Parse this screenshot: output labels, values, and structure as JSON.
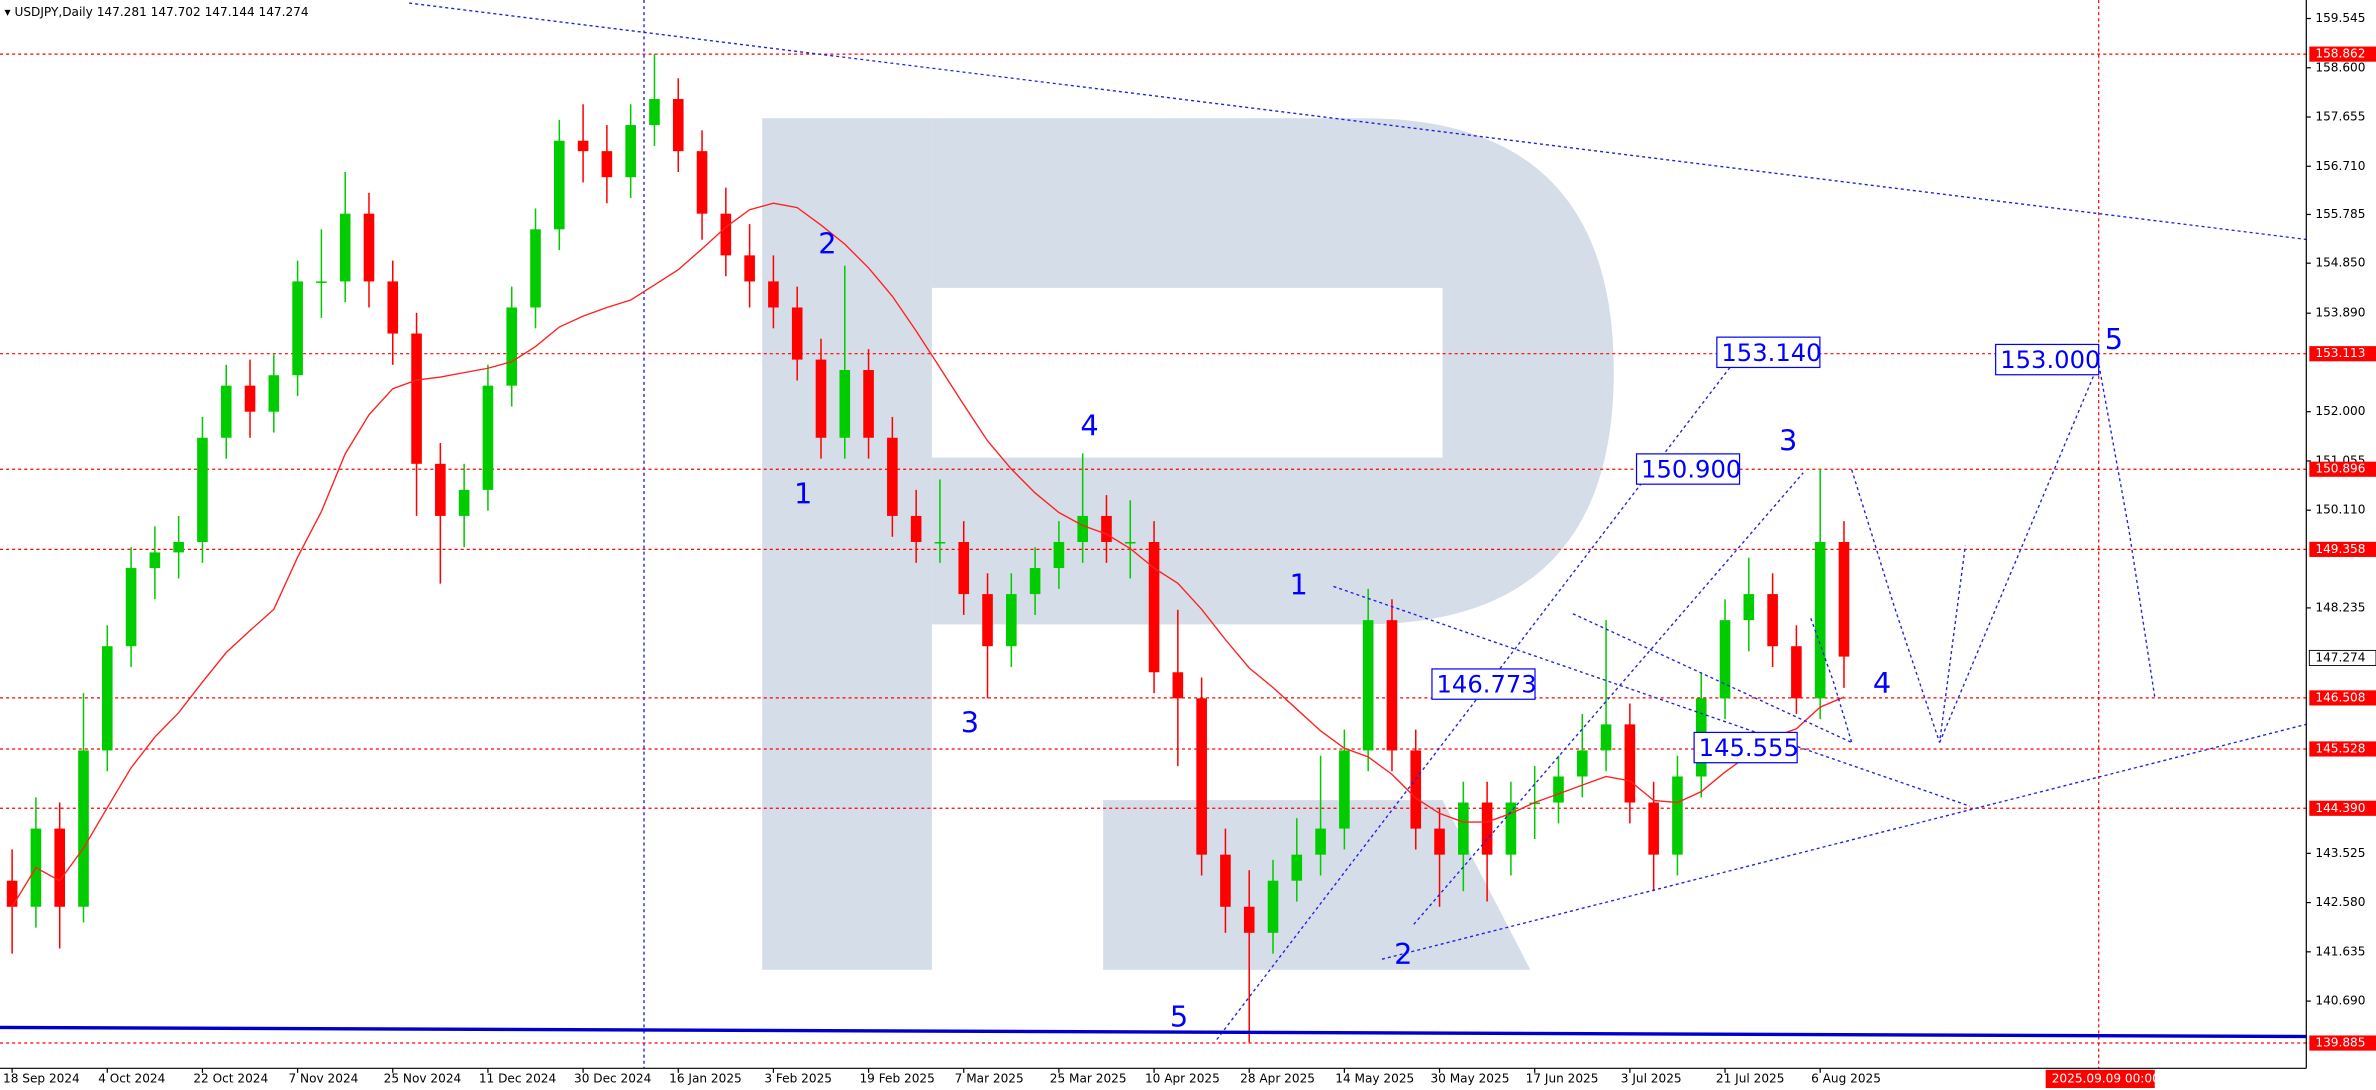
{
  "chart_data": {
    "type": "candlestick",
    "symbol": "USDJPY,Daily",
    "ohlc": [
      147.281,
      147.702,
      147.144,
      147.274
    ],
    "up_color": "#00cc00",
    "down_color": "#ff0000",
    "ma_color": "#ff2020",
    "ylim": [
      139.4,
      159.9
    ],
    "yticks": [
      159.545,
      {
        "value": 158.6,
        "label": "158.600"
      },
      157.655,
      {
        "value": 156.71,
        "label": "156.710"
      },
      155.785,
      {
        "value": 154.85,
        "label": "154.850"
      },
      {
        "value": 153.89,
        "label": "153.890"
      },
      {
        "value": 152.0,
        "label": "152.000"
      },
      151.055,
      {
        "value": 150.11,
        "label": "150.110"
      },
      148.235,
      143.525,
      {
        "value": 142.58,
        "label": "142.580"
      },
      141.635,
      {
        "value": 140.69,
        "label": "140.690"
      }
    ],
    "categories": [
      "18 Sep 2024",
      null,
      null,
      null,
      "4 Oct 2024",
      null,
      null,
      null,
      "22 Oct 2024",
      null,
      null,
      null,
      "7 Nov 2024",
      null,
      null,
      null,
      "25 Nov 2024",
      null,
      null,
      null,
      "11 Dec 2024",
      null,
      null,
      null,
      "30 Dec 2024",
      null,
      null,
      null,
      "16 Jan 2025",
      null,
      null,
      null,
      "3 Feb 2025",
      null,
      null,
      null,
      "19 Feb 2025",
      null,
      null,
      null,
      "7 Mar 2025",
      null,
      null,
      null,
      "25 Mar 2025",
      null,
      null,
      null,
      "10 Apr 2025",
      null,
      null,
      null,
      "28 Apr 2025",
      null,
      null,
      null,
      "14 May 2025",
      null,
      null,
      null,
      "30 May 2025",
      null,
      null,
      null,
      "17 Jun 2025",
      null,
      null,
      null,
      "3 Jul 2025",
      null,
      null,
      null,
      "21 Jul 2025",
      null,
      null,
      null,
      "6 Aug 2025",
      null
    ],
    "candles": [
      [
        143.0,
        143.6,
        141.6,
        142.5
      ],
      [
        142.5,
        144.6,
        142.1,
        144.0
      ],
      [
        144.0,
        144.5,
        141.7,
        142.5
      ],
      [
        142.5,
        146.6,
        142.2,
        145.5
      ],
      [
        145.5,
        147.9,
        145.1,
        147.5
      ],
      [
        147.5,
        149.4,
        147.1,
        149.0
      ],
      [
        149.0,
        149.8,
        148.4,
        149.3
      ],
      [
        149.3,
        150.0,
        148.8,
        149.5
      ],
      [
        149.5,
        151.9,
        149.1,
        151.5
      ],
      [
        151.5,
        152.9,
        151.1,
        152.5
      ],
      [
        152.5,
        153.0,
        151.5,
        152.0
      ],
      [
        152.0,
        153.1,
        151.6,
        152.7
      ],
      [
        152.7,
        154.9,
        152.3,
        154.5
      ],
      [
        154.5,
        155.5,
        153.8,
        154.5
      ],
      [
        154.5,
        156.6,
        154.1,
        155.8
      ],
      [
        155.8,
        156.2,
        154.0,
        154.5
      ],
      [
        154.5,
        154.9,
        152.9,
        153.5
      ],
      [
        153.5,
        153.9,
        150.0,
        151.0
      ],
      [
        151.0,
        151.4,
        148.7,
        150.0
      ],
      [
        150.0,
        151.0,
        149.4,
        150.5
      ],
      [
        150.5,
        152.9,
        150.1,
        152.5
      ],
      [
        152.5,
        154.4,
        152.1,
        154.0
      ],
      [
        154.0,
        155.9,
        153.6,
        155.5
      ],
      [
        155.5,
        157.6,
        155.1,
        157.2
      ],
      [
        157.2,
        157.9,
        156.4,
        157.0
      ],
      [
        157.0,
        157.5,
        156.0,
        156.5
      ],
      [
        156.5,
        157.9,
        156.1,
        157.5
      ],
      [
        157.5,
        158.86,
        157.1,
        158.0
      ],
      [
        158.0,
        158.4,
        156.6,
        157.0
      ],
      [
        157.0,
        157.4,
        155.3,
        155.8
      ],
      [
        155.8,
        156.3,
        154.6,
        155.0
      ],
      [
        155.0,
        155.6,
        154.0,
        154.5
      ],
      [
        154.5,
        155.0,
        153.6,
        154.0
      ],
      [
        154.0,
        154.4,
        152.6,
        153.0
      ],
      [
        153.0,
        153.4,
        151.1,
        151.5
      ],
      [
        151.5,
        154.8,
        151.1,
        152.8
      ],
      [
        152.8,
        153.2,
        151.1,
        151.5
      ],
      [
        151.5,
        151.9,
        149.6,
        150.0
      ],
      [
        150.0,
        150.5,
        149.1,
        149.5
      ],
      [
        149.5,
        150.7,
        149.1,
        149.5
      ],
      [
        149.5,
        149.9,
        148.1,
        148.5
      ],
      [
        148.5,
        148.9,
        146.5,
        147.5
      ],
      [
        147.5,
        148.9,
        147.1,
        148.5
      ],
      [
        148.5,
        149.4,
        148.1,
        149.0
      ],
      [
        149.0,
        149.9,
        148.6,
        149.5
      ],
      [
        149.5,
        151.2,
        149.1,
        150.0
      ],
      [
        150.0,
        150.4,
        149.1,
        149.5
      ],
      [
        149.5,
        150.3,
        148.8,
        149.5
      ],
      [
        149.5,
        149.9,
        146.6,
        147.0
      ],
      [
        147.0,
        148.2,
        145.2,
        146.5
      ],
      [
        146.5,
        146.9,
        143.1,
        143.5
      ],
      [
        143.5,
        144.0,
        142.0,
        142.5
      ],
      [
        142.5,
        143.2,
        139.9,
        142.0
      ],
      [
        142.0,
        143.4,
        141.6,
        143.0
      ],
      [
        143.0,
        144.2,
        142.6,
        143.5
      ],
      [
        143.5,
        145.4,
        143.1,
        144.0
      ],
      [
        144.0,
        145.9,
        143.6,
        145.5
      ],
      [
        145.5,
        148.6,
        145.1,
        148.0
      ],
      [
        148.0,
        148.4,
        145.1,
        145.5
      ],
      [
        145.5,
        145.9,
        143.6,
        144.0
      ],
      [
        144.0,
        144.4,
        142.5,
        143.5
      ],
      [
        143.5,
        144.9,
        142.8,
        144.5
      ],
      [
        144.5,
        144.9,
        142.6,
        143.5
      ],
      [
        143.5,
        144.9,
        143.1,
        144.5
      ],
      [
        144.5,
        145.2,
        143.8,
        144.5
      ],
      [
        144.5,
        145.4,
        144.1,
        145.0
      ],
      [
        145.0,
        146.2,
        144.6,
        145.5
      ],
      [
        145.5,
        148.0,
        145.1,
        146.0
      ],
      [
        146.0,
        146.4,
        144.1,
        144.5
      ],
      [
        144.5,
        144.9,
        142.8,
        143.5
      ],
      [
        143.5,
        145.4,
        143.1,
        145.0
      ],
      [
        145.0,
        147.0,
        144.6,
        146.5
      ],
      [
        146.5,
        148.4,
        146.1,
        148.0
      ],
      [
        148.0,
        149.2,
        147.4,
        148.5
      ],
      [
        148.5,
        148.9,
        147.1,
        147.5
      ],
      [
        147.5,
        147.9,
        146.2,
        146.5
      ],
      [
        146.5,
        150.9,
        146.1,
        149.5
      ],
      [
        149.5,
        149.9,
        146.7,
        147.3
      ]
    ],
    "levels": [
      {
        "value": 158.862,
        "label": "158.862"
      },
      {
        "value": 153.113,
        "label": "153.113"
      },
      {
        "value": 150.896,
        "label": "150.896"
      },
      {
        "value": 149.358,
        "label": "149.358"
      },
      {
        "value": 146.508,
        "label": "146.508"
      },
      {
        "value": 145.528,
        "label": "145.528"
      },
      {
        "value": 144.39,
        "label": "144.390"
      },
      {
        "value": 139.885,
        "label": "139.885"
      }
    ],
    "level_color": "#ff0000",
    "current_price": {
      "value": 147.274,
      "label": "147.274"
    },
    "targets": [
      {
        "value": 153.14,
        "label": "153.140"
      },
      {
        "value": 150.9,
        "label": "150.900"
      },
      {
        "value": 146.773,
        "label": "146.773"
      },
      {
        "value": 145.555,
        "label": "145.555"
      },
      {
        "value": 153.0,
        "label": "153.000"
      }
    ],
    "waves": [
      "1",
      "2",
      "3",
      "4",
      "5",
      "1",
      "2",
      "3",
      "4",
      "5"
    ],
    "cursor_date": "2025.09.09 00:00"
  }
}
